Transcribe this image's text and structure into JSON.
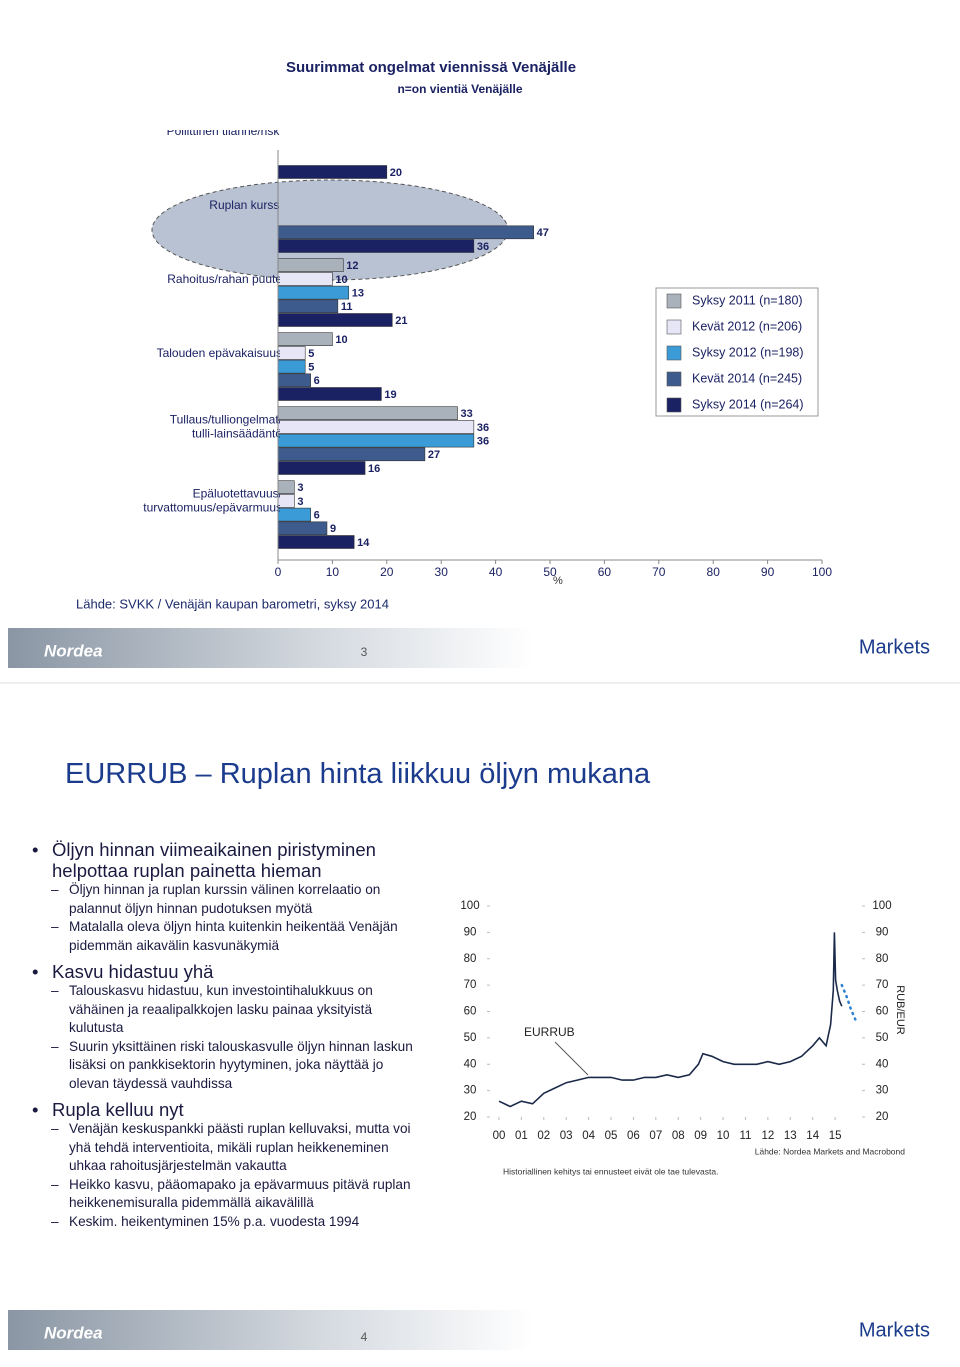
{
  "slides": [
    {
      "source": "Lähde: SVKK / Venäjän kaupan barometri, syksy 2014",
      "page_number": "3",
      "brand": "Nordea",
      "product": "Markets"
    },
    {
      "title": "EURRUB – Ruplan hinta liikkuu öljyn mukana",
      "bullets": [
        {
          "text": "Öljyn hinnan viimeaikainen piristyminen helpottaa ruplan painetta hieman",
          "sub": [
            "Öljyn hinnan ja ruplan kurssin välinen korrelaatio on palannut öljyn hinnan pudotuksen myötä",
            "Matalalla oleva öljyn hinta kuitenkin heikentää Venäjän pidemmän aikavälin kasvunäkymiä"
          ]
        },
        {
          "text": "Kasvu hidastuu yhä",
          "sub": [
            "Talouskasvu hidastuu, kun investointihalukkuus on vähäinen ja reaalipalkkojen lasku painaa yksityistä kulutusta",
            "Suurin yksittäinen riski talouskasvulle öljyn hinnan laskun lisäksi on pankkisektorin hyytyminen, joka näyttää jo olevan täydessä vauhdissa"
          ]
        },
        {
          "text": "Rupla kelluu nyt",
          "sub": [
            "Venäjän keskuspankki päästi ruplan kelluvaksi, mutta voi yhä tehdä interventioita, mikäli ruplan heikkeneminen uhkaa rahoitusjärjestelmän vakautta",
            "Heikko kasvu, pääomapako ja epävarmuus pitävä ruplan heikkenemisuralla pidemmällä aikavälillä",
            "Keskim. heikentyminen 15% p.a. vuodesta 1994"
          ]
        }
      ],
      "page_number": "4",
      "brand": "Nordea",
      "product": "Markets"
    }
  ],
  "chart_data": [
    {
      "type": "bar",
      "orientation": "horizontal",
      "title": "Suurimmat ongelmat viennissä Venäjälle",
      "subtitle": "n=on vientiä Venäjälle",
      "categories": [
        "Poliittinen tilanne/riski",
        "Ruplan kurssi",
        "Rahoitus/rahan puute",
        "Talouden epävakaisuus",
        "Tullaus/tulliongelmat/\ntulli-lainsäädäntö",
        "Epäluotettavuus/\nturvattomuus/epävarmuus"
      ],
      "series": [
        {
          "name": "Syksy 2011 (n=180)",
          "color": "#a9b1bb",
          "values": [
            null,
            null,
            12,
            10,
            33,
            3
          ]
        },
        {
          "name": "Kevät 2012 (n=206)",
          "color": "#e6e6f7",
          "values": [
            null,
            null,
            10,
            5,
            36,
            3
          ]
        },
        {
          "name": "Syksy 2012 (n=198)",
          "color": "#3a9bd6",
          "values": [
            null,
            null,
            13,
            5,
            36,
            6
          ]
        },
        {
          "name": "Kevät 2014 (n=245)",
          "color": "#3d5b8c",
          "values": [
            null,
            47,
            11,
            6,
            27,
            9
          ]
        },
        {
          "name": "Syksy 2014 (n=264)",
          "color": "#1b2263",
          "values": [
            20,
            36,
            21,
            19,
            16,
            14
          ]
        }
      ],
      "xlim": [
        0,
        100
      ],
      "xticks": [
        0,
        10,
        20,
        30,
        40,
        50,
        60,
        70,
        80,
        90,
        100
      ],
      "xlabel": "%",
      "legend": "right"
    },
    {
      "type": "line",
      "annotation": "EURRUB",
      "y2label": "RUB/EUR",
      "source": "Lähde: Nordea Markets and Macrobond",
      "note": "Historiallinen kehitys tai ennusteet eivät ole tae tulevasta.",
      "series": [
        {
          "color": "#1b2a4a",
          "style": "solid",
          "x": [
            2000,
            2000.5,
            2001,
            2001.5,
            2002,
            2002.5,
            2003,
            2003.5,
            2004,
            2004.5,
            2005,
            2005.5,
            2006,
            2006.5,
            2007,
            2007.5,
            2008,
            2008.5,
            2008.9,
            2009.1,
            2009.5,
            2010,
            2010.5,
            2011,
            2011.5,
            2012,
            2012.5,
            2013,
            2013.5,
            2014,
            2014.3,
            2014.6,
            2014.8,
            2014.92,
            2014.97,
            2015.02,
            2015.1,
            2015.2,
            2015.3
          ],
          "values": [
            26,
            24,
            26,
            25,
            29,
            31,
            33,
            34,
            35,
            35,
            35,
            34,
            34,
            35,
            35,
            36,
            35,
            36,
            40,
            44,
            43,
            41,
            40,
            40,
            40,
            41,
            40,
            41,
            43,
            47,
            50,
            47,
            55,
            68,
            90,
            72,
            68,
            64,
            62
          ]
        },
        {
          "color": "#2a7fd0",
          "style": "dotted",
          "x": [
            2015.3,
            2015.5,
            2015.7,
            2015.9
          ],
          "values": [
            70,
            66,
            61,
            57
          ]
        }
      ],
      "xlim": [
        1999.6,
        2016.2
      ],
      "xticks": [
        {
          "value": 2000,
          "label": "00"
        },
        {
          "value": 2001,
          "label": "01"
        },
        {
          "value": 2002,
          "label": "02"
        },
        {
          "value": 2003,
          "label": "03"
        },
        {
          "value": 2004,
          "label": "04"
        },
        {
          "value": 2005,
          "label": "05"
        },
        {
          "value": 2006,
          "label": "06"
        },
        {
          "value": 2007,
          "label": "07"
        },
        {
          "value": 2008,
          "label": "08"
        },
        {
          "value": 2009,
          "label": "09"
        },
        {
          "value": 2010,
          "label": "10"
        },
        {
          "value": 2011,
          "label": "11"
        },
        {
          "value": 2012,
          "label": "12"
        },
        {
          "value": 2013,
          "label": "13"
        },
        {
          "value": 2014,
          "label": "14"
        },
        {
          "value": 2015,
          "label": "15"
        }
      ],
      "ylim": [
        20,
        100
      ],
      "yticks": [
        20,
        30,
        40,
        50,
        60,
        70,
        80,
        90,
        100
      ],
      "y2lim": [
        20,
        100
      ],
      "y2ticks": [
        20,
        30,
        40,
        50,
        60,
        70,
        80,
        90,
        100
      ]
    }
  ]
}
